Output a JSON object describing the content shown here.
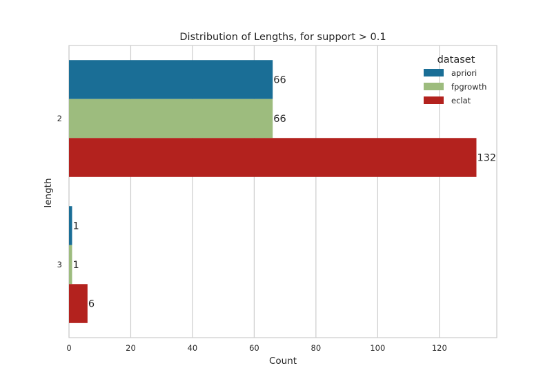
{
  "chart_data": {
    "type": "bar",
    "orientation": "horizontal",
    "title": "Distribution of Lengths, for support > 0.1",
    "xlabel": "Count",
    "ylabel": "length",
    "categories": [
      "2",
      "3"
    ],
    "series": [
      {
        "name": "apriori",
        "values": [
          66,
          1
        ],
        "color": "#1a6e96"
      },
      {
        "name": "fpgrowth",
        "values": [
          66,
          1
        ],
        "color": "#9dbc7e"
      },
      {
        "name": "eclat",
        "values": [
          132,
          6
        ],
        "color": "#b3221e"
      }
    ],
    "xlim": [
      0,
      138.6
    ],
    "xticks": [
      0,
      20,
      40,
      60,
      80,
      100,
      120
    ],
    "grid": true,
    "legend": {
      "title": "dataset",
      "placement": "top-right"
    },
    "data_labels": true
  }
}
